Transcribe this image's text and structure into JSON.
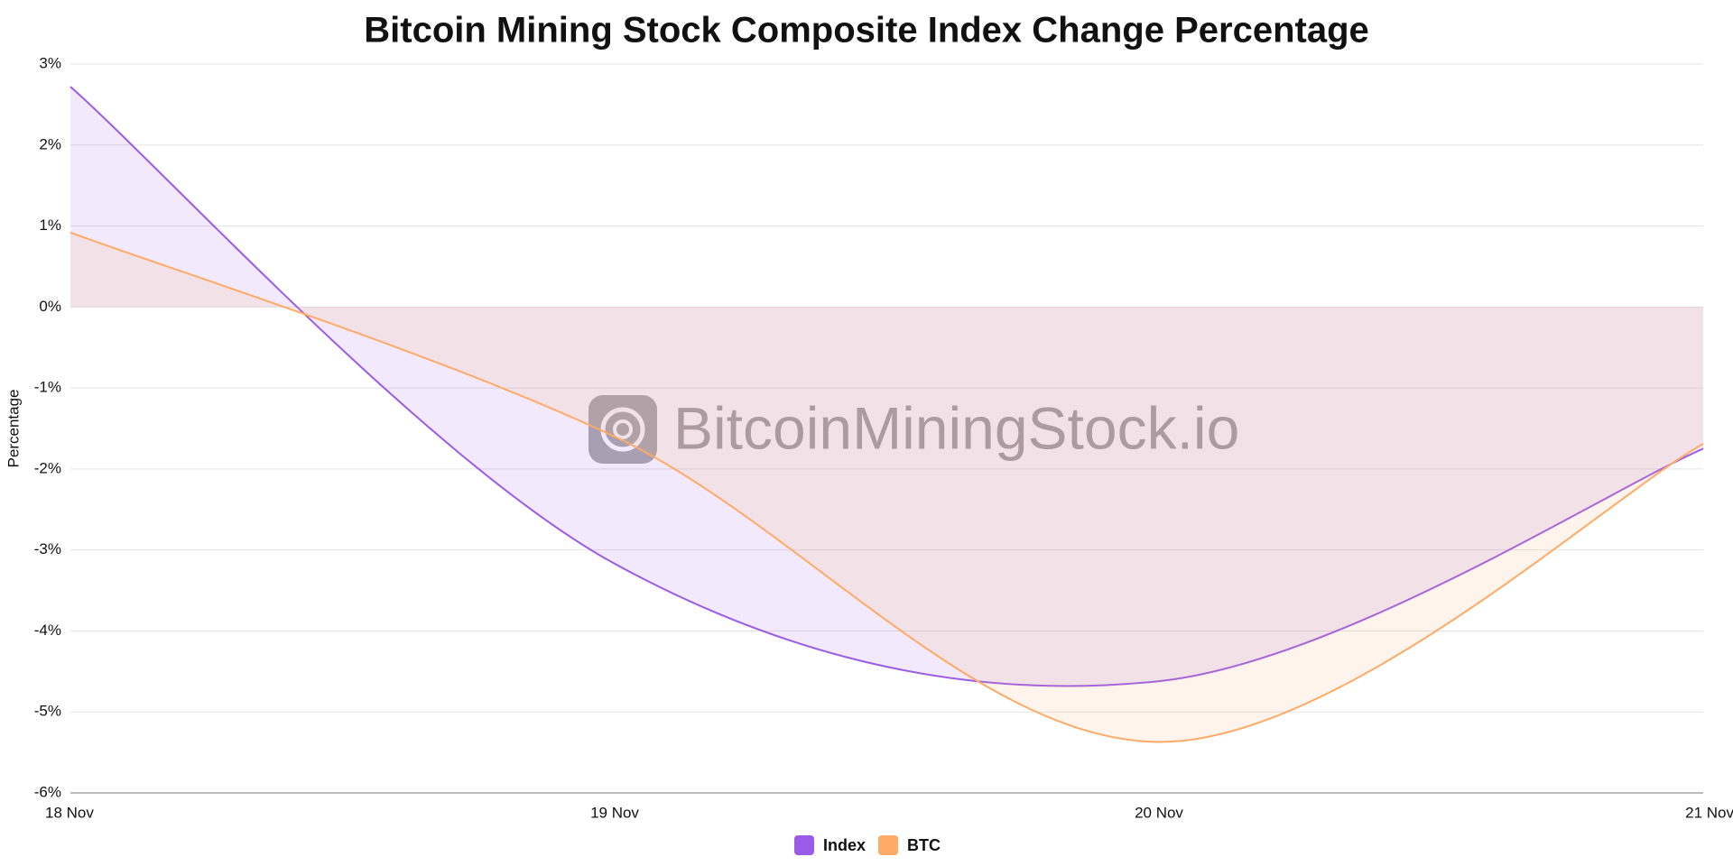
{
  "chart_data": {
    "type": "line",
    "title": "Bitcoin Mining Stock Composite Index Change Percentage",
    "y_label": "Percentage",
    "watermark": "BitcoinMiningStock.io",
    "categories": [
      "18 Nov",
      "19 Nov",
      "20 Nov",
      "21 Nov"
    ],
    "series": [
      {
        "name": "Index",
        "color": "#9a5ce8",
        "values": [
          2.72,
          -3.17,
          -4.62,
          -1.75
        ]
      },
      {
        "name": "BTC",
        "color": "#ffaa66",
        "values": [
          0.92,
          -1.6,
          -5.37,
          -1.69
        ]
      }
    ],
    "ylim": [
      -6,
      3
    ],
    "yticks": [
      {
        "value": -6,
        "label": "-6%"
      },
      {
        "value": -5,
        "label": "-5%"
      },
      {
        "value": -4,
        "label": "-4%"
      },
      {
        "value": -3,
        "label": "-3%"
      },
      {
        "value": -2,
        "label": "-2%"
      },
      {
        "value": -1,
        "label": "-1%"
      },
      {
        "value": 0,
        "label": "0%"
      },
      {
        "value": 1,
        "label": "1%"
      },
      {
        "value": 2,
        "label": "2%"
      },
      {
        "value": 3,
        "label": "3%"
      }
    ],
    "grid": true,
    "area": true,
    "smooth": true,
    "legend": "bottom"
  }
}
